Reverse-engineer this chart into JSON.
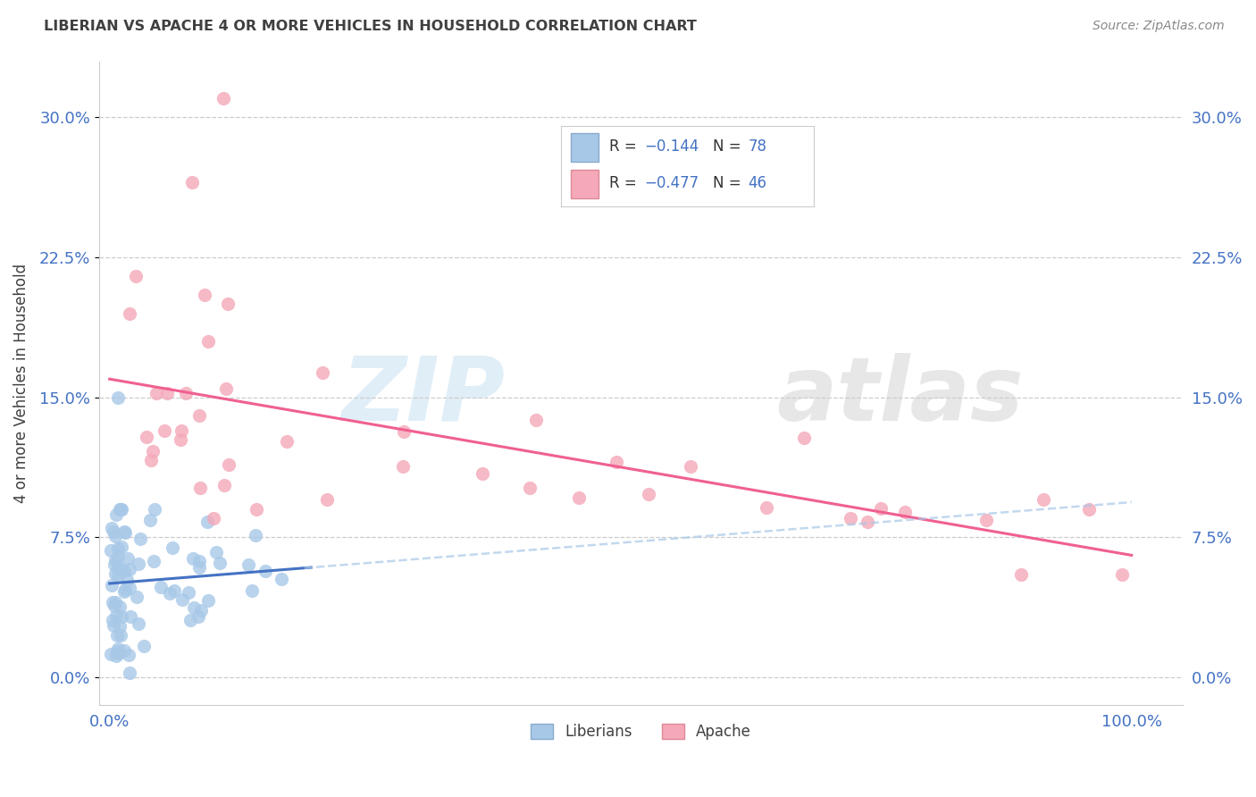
{
  "title": "LIBERIAN VS APACHE 4 OR MORE VEHICLES IN HOUSEHOLD CORRELATION CHART",
  "source": "Source: ZipAtlas.com",
  "ylabel": "4 or more Vehicles in Household",
  "ytick_labels": [
    "0.0%",
    "7.5%",
    "15.0%",
    "22.5%",
    "30.0%"
  ],
  "ytick_values": [
    0.0,
    7.5,
    15.0,
    22.5,
    30.0
  ],
  "xlim": [
    -1.0,
    105.0
  ],
  "ylim": [
    -1.5,
    33.0
  ],
  "liberian_color": "#a8c8e8",
  "apache_color": "#f4a8b8",
  "liberian_line_color": "#4472c4",
  "apache_line_color": "#f06090",
  "liberian_line_dash_color": "#a8c8e8",
  "watermark_zip": "ZIP",
  "watermark_atlas": "atlas",
  "background_color": "#ffffff",
  "grid_color": "#cccccc",
  "title_color": "#404040",
  "source_color": "#888888",
  "tick_label_color": "#4472c4",
  "axis_color": "#cccccc",
  "legend_R_color": "#333333",
  "legend_N_color": "#333333",
  "legend_val_color": "#4472c4"
}
